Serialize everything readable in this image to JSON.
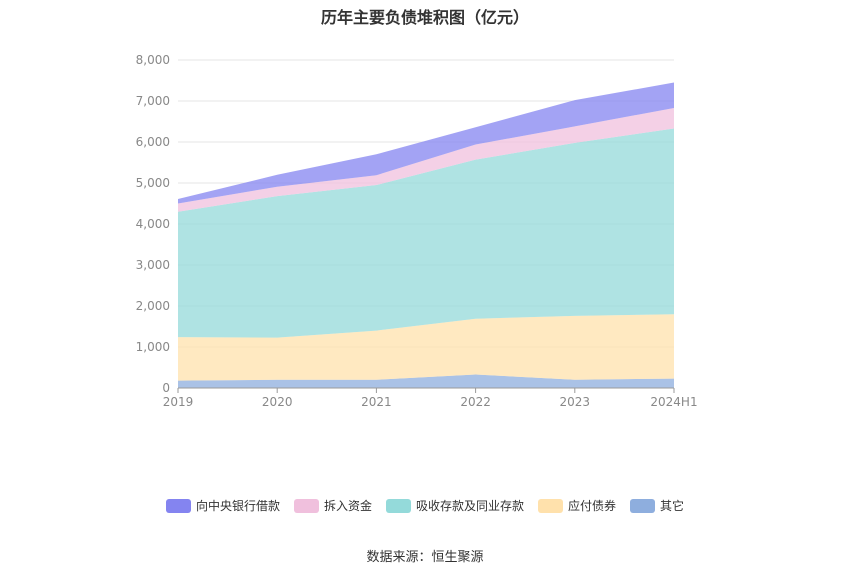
{
  "source": "数据来源：恒生聚源",
  "chart_data": {
    "type": "area",
    "stacked": true,
    "title": "历年主要负债堆积图（亿元）",
    "categories": [
      "2019",
      "2020",
      "2021",
      "2022",
      "2023",
      "2024H1"
    ],
    "ylim": [
      0,
      8000
    ],
    "yticks": [
      "0",
      "1,000",
      "2,000",
      "3,000",
      "4,000",
      "5,000",
      "6,000",
      "7,000",
      "8,000"
    ],
    "grid": true,
    "legend_position": "bottom",
    "series": [
      {
        "name": "其它",
        "color": "#8eaede",
        "values": [
          180,
          200,
          200,
          330,
          200,
          230
        ]
      },
      {
        "name": "应付债券",
        "color": "#ffe1ac",
        "values": [
          1060,
          1030,
          1200,
          1360,
          1560,
          1570
        ]
      },
      {
        "name": "吸收存款及同业存款",
        "color": "#94dada",
        "values": [
          3060,
          3450,
          3550,
          3880,
          4220,
          4530
        ]
      },
      {
        "name": "拆入资金",
        "color": "#f0c0dd",
        "values": [
          200,
          230,
          240,
          370,
          400,
          500
        ]
      },
      {
        "name": "向中央银行借款",
        "color": "#8484f0",
        "values": [
          110,
          290,
          510,
          420,
          640,
          620
        ]
      }
    ]
  }
}
